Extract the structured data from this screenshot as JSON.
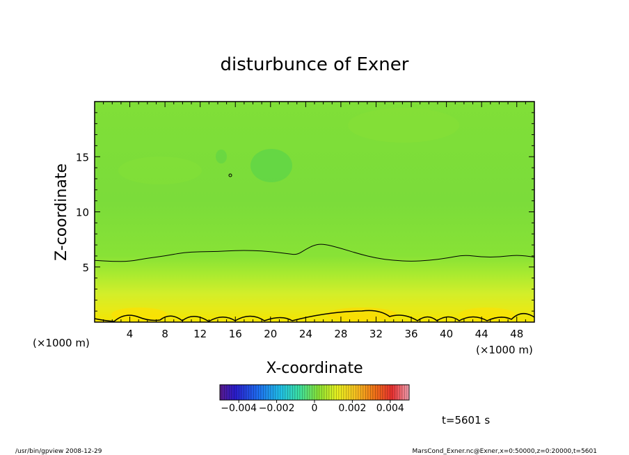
{
  "chart_data": {
    "type": "heatmap",
    "title": "disturbunce of Exner",
    "xlabel": "X-coordinate",
    "ylabel": "Z-coordinate",
    "x_unit": "(×1000 m)",
    "x_unit_right": "(×1000 m)",
    "xlim": [
      0,
      50
    ],
    "ylim": [
      0,
      20
    ],
    "xticks": [
      4,
      8,
      12,
      16,
      20,
      24,
      28,
      32,
      36,
      40,
      44,
      48
    ],
    "yticks": [
      5,
      10,
      15
    ],
    "field_description": "Exner pressure disturbance (color shaded)",
    "contour_levels": [
      0
    ],
    "contour_z0_profile": {
      "x": [
        0,
        2,
        4,
        6,
        8,
        10,
        12,
        14,
        16,
        18,
        20,
        22,
        23,
        24,
        25,
        26,
        28,
        30,
        32,
        34,
        36,
        38,
        40,
        42,
        44,
        46,
        48,
        50
      ],
      "z": [
        5.6,
        5.5,
        5.5,
        5.8,
        6.0,
        6.3,
        6.4,
        6.4,
        6.5,
        6.5,
        6.4,
        6.2,
        6.1,
        6.6,
        7.0,
        7.1,
        6.7,
        6.2,
        5.8,
        5.6,
        5.5,
        5.6,
        5.8,
        6.1,
        5.9,
        5.9,
        6.1,
        5.9
      ]
    },
    "colorbar": {
      "range": [
        -0.005,
        0.005
      ],
      "tick_labels": [
        "−0.004",
        "−0.002",
        "0",
        "0.002",
        "0.004"
      ],
      "tick_values": [
        -0.004,
        -0.002,
        0,
        0.002,
        0.004
      ],
      "colormap": "rainbow (purple–blue–cyan–green–yellow–red–pink)"
    },
    "time_label": "t=5601 s",
    "footer_left": "/usr/bin/gpview  2008-12-29",
    "footer_right": "MarsCond_Exner.nc@Exner,x=0:50000,z=0:20000,t=5601"
  }
}
